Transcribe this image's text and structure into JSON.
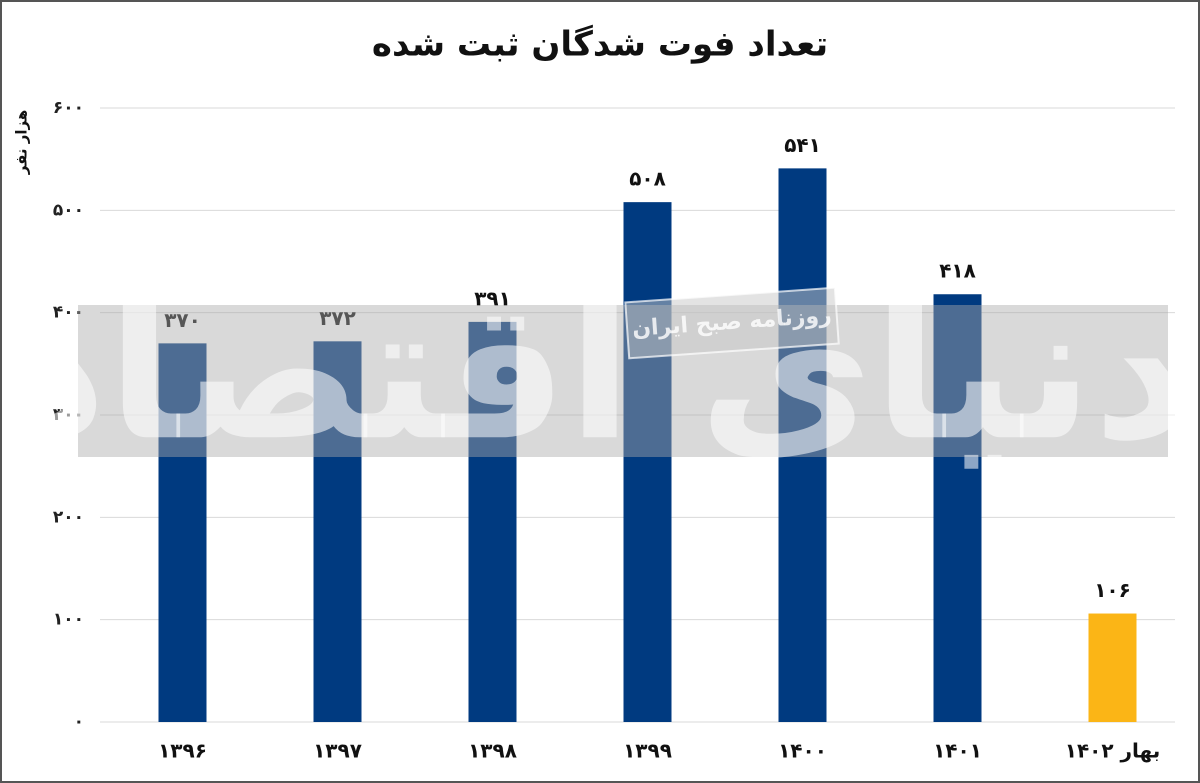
{
  "chart_data": {
    "type": "bar",
    "title": "تعداد فوت شدگان ثبت شده",
    "y_label": "هزار نفر",
    "watermark": "دنیای اقتصاد",
    "watermark_subtitle": "روزنامه صبح ایران",
    "categories": [
      "۱۳۹۶",
      "۱۳۹۷",
      "۱۳۹۸",
      "۱۳۹۹",
      "۱۴۰۰",
      "۱۴۰۱",
      "بهار ۱۴۰۲"
    ],
    "values": [
      370,
      372,
      391,
      508,
      541,
      418,
      106
    ],
    "value_labels": [
      "۳۷۰",
      "۳۷۲",
      "۳۹۱",
      "۵۰۸",
      "۵۴۱",
      "۴۱۸",
      "۱۰۶"
    ],
    "colors": [
      "#003a80",
      "#003a80",
      "#003a80",
      "#003a80",
      "#003a80",
      "#003a80",
      "#fbb516"
    ],
    "ylim": [
      0,
      600
    ],
    "yticks": [
      {
        "value": 0,
        "label": "۰"
      },
      {
        "value": 100,
        "label": "۱۰۰"
      },
      {
        "value": 200,
        "label": "۲۰۰"
      },
      {
        "value": 300,
        "label": "۳۰۰"
      },
      {
        "value": 400,
        "label": "۴۰۰"
      },
      {
        "value": 500,
        "label": "۵۰۰"
      },
      {
        "value": 600,
        "label": "۶۰۰"
      }
    ],
    "grid": true
  }
}
